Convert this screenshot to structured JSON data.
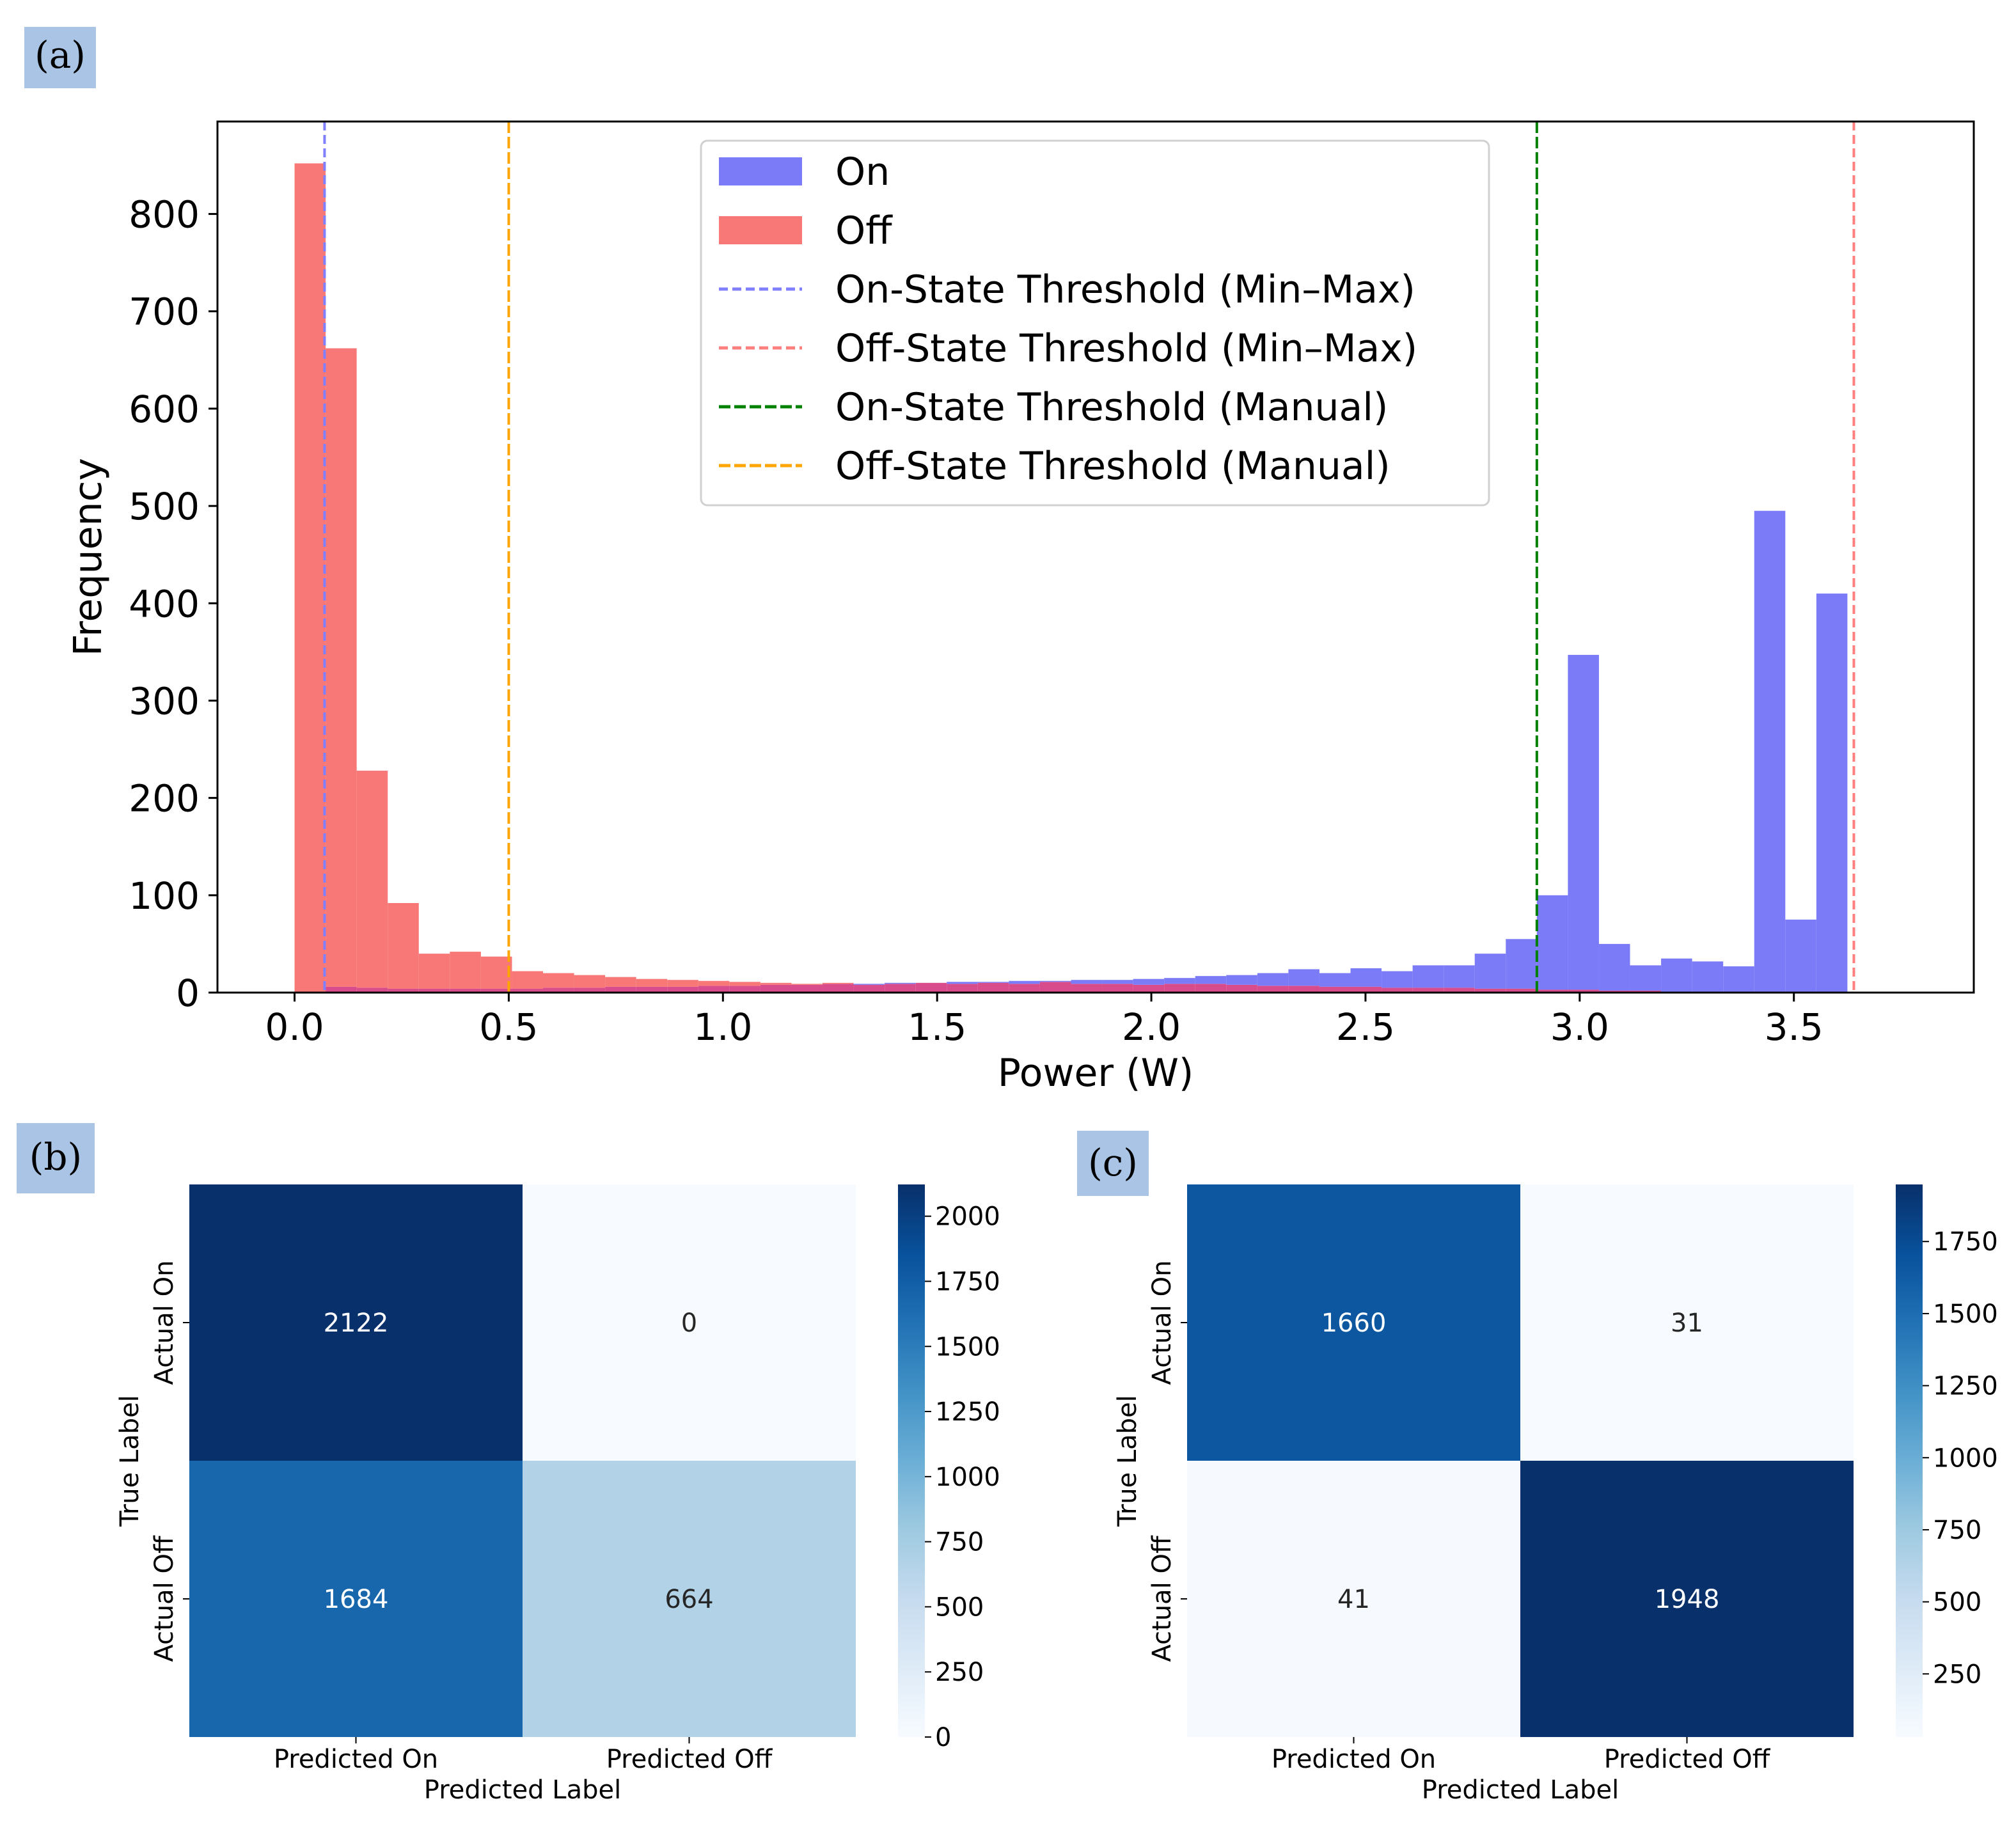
{
  "panel_labels": [
    "(a)",
    "(b)",
    "(c)"
  ],
  "colors": {
    "on": "#7b7bf7",
    "off": "#f87777",
    "overlap": "#d94c8c",
    "on_minmax": "#8080ff",
    "off_minmax": "#ff7f7f",
    "on_manual": "#008000",
    "off_manual": "#ffa500",
    "panel_label_bg": "#a9c4e4"
  },
  "chart_data": [
    {
      "id": "a",
      "type": "histogram",
      "xlabel": "Power (W)",
      "ylabel": "Frequency",
      "xlim": [
        -0.18,
        3.92
      ],
      "ylim": [
        0,
        895
      ],
      "xticks": [
        0.0,
        0.5,
        1.0,
        1.5,
        2.0,
        2.5,
        3.0,
        3.5
      ],
      "xtick_labels": [
        "0.0",
        "0.5",
        "1.0",
        "1.5",
        "2.0",
        "2.5",
        "3.0",
        "3.5"
      ],
      "yticks": [
        0,
        100,
        200,
        300,
        400,
        500,
        600,
        700,
        800
      ],
      "ytick_labels": [
        "0",
        "100",
        "200",
        "300",
        "400",
        "500",
        "600",
        "700",
        "800"
      ],
      "bin_start": 0.0,
      "bin_width": 0.0725,
      "series": [
        {
          "name": "On",
          "color_key": "on",
          "values": [
            0,
            6,
            5,
            4,
            4,
            4,
            4,
            4,
            5,
            5,
            6,
            6,
            6,
            7,
            7,
            8,
            8,
            9,
            9,
            10,
            10,
            11,
            11,
            12,
            12,
            13,
            13,
            14,
            15,
            17,
            18,
            20,
            24,
            20,
            25,
            22,
            28,
            28,
            40,
            55,
            100,
            347,
            50,
            28,
            35,
            32,
            27,
            495,
            75,
            410
          ]
        },
        {
          "name": "Off",
          "color_key": "off",
          "values": [
            852,
            662,
            228,
            92,
            40,
            42,
            37,
            22,
            20,
            18,
            16,
            14,
            13,
            12,
            11,
            10,
            9,
            10,
            8,
            9,
            10,
            9,
            10,
            9,
            11,
            9,
            9,
            8,
            9,
            9,
            8,
            7,
            7,
            6,
            6,
            5,
            5,
            5,
            4,
            4,
            3,
            3,
            2,
            2,
            1,
            1,
            1,
            1,
            1,
            0
          ]
        }
      ],
      "thresholds": [
        {
          "name": "On-State Threshold (Min–Max)",
          "x": 0.07,
          "color_key": "on_minmax",
          "dash": "short"
        },
        {
          "name": "Off-State Threshold (Min–Max)",
          "x": 3.64,
          "color_key": "off_minmax",
          "dash": "short"
        },
        {
          "name": "On-State Threshold (Manual)",
          "x": 2.9,
          "color_key": "on_manual",
          "dash": "long"
        },
        {
          "name": "Off-State Threshold (Manual)",
          "x": 0.5,
          "color_key": "off_manual",
          "dash": "long"
        }
      ],
      "legend": {
        "placement": "upper-center",
        "entries": [
          "On",
          "Off",
          "On-State Threshold (Min–Max)",
          "Off-State Threshold (Min–Max)",
          "On-State Threshold (Manual)",
          "Off-State Threshold (Manual)"
        ]
      }
    },
    {
      "id": "b",
      "type": "heatmap",
      "xlabel": "Predicted Label",
      "ylabel": "True Label",
      "col_labels": [
        "Predicted On",
        "Predicted Off"
      ],
      "row_labels": [
        "Actual On",
        "Actual Off"
      ],
      "values": [
        [
          2122,
          0
        ],
        [
          1684,
          664
        ]
      ],
      "colorbar": {
        "min": 0,
        "max": 2122,
        "ticks": [
          0,
          250,
          500,
          750,
          1000,
          1250,
          1500,
          1750,
          2000
        ],
        "tick_labels": [
          "0",
          "250",
          "500",
          "750",
          "1000",
          "1250",
          "1500",
          "1750",
          "2000"
        ]
      },
      "colormap": "Blues"
    },
    {
      "id": "c",
      "type": "heatmap",
      "xlabel": "Predicted Label",
      "ylabel": "True Label",
      "col_labels": [
        "Predicted On",
        "Predicted Off"
      ],
      "row_labels": [
        "Actual On",
        "Actual Off"
      ],
      "values": [
        [
          1660,
          31
        ],
        [
          41,
          1948
        ]
      ],
      "colorbar": {
        "min": 31,
        "max": 1948,
        "ticks": [
          250,
          500,
          750,
          1000,
          1250,
          1500,
          1750
        ],
        "tick_labels": [
          "250",
          "500",
          "750",
          "1000",
          "1250",
          "1500",
          "1750"
        ]
      },
      "colormap": "Blues"
    }
  ]
}
